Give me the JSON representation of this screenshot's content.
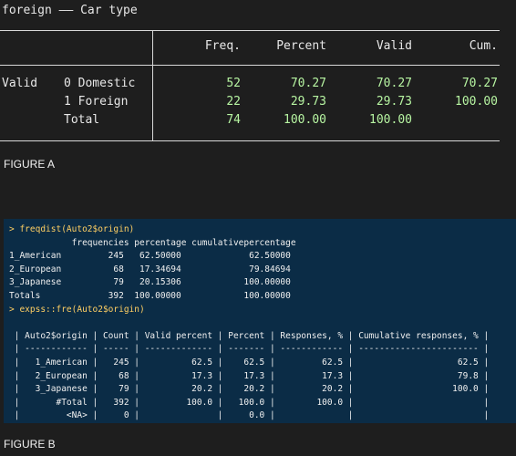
{
  "figureA": {
    "title": "foreign —— Car type",
    "headers": [
      "Freq.",
      "Percent",
      "Valid",
      "Cum."
    ],
    "row_group_label": "Valid",
    "rows": [
      {
        "label": "0 Domestic",
        "freq": "52",
        "percent": "70.27",
        "valid": "70.27",
        "cum": "70.27"
      },
      {
        "label": "1 Foreign",
        "freq": "22",
        "percent": "29.73",
        "valid": "29.73",
        "cum": "100.00"
      },
      {
        "label": "Total",
        "freq": "74",
        "percent": "100.00",
        "valid": "100.00",
        "cum": ""
      }
    ],
    "caption": "FIGURE A",
    "colors": {
      "background": "#1e1e1e",
      "text": "#e8e8e8",
      "numbers": "#b7f5a2",
      "rules": "#d9d9d9"
    }
  },
  "figureB": {
    "caption": "FIGURE B",
    "colors": {
      "background": "#0b2c46",
      "command": "#ffcf63",
      "output": "#f0f0f0"
    },
    "lines": [
      {
        "kind": "cmd",
        "text": "> freqdist(Auto2$origin)"
      },
      {
        "kind": "out",
        "text": "            frequencies percentage cumulativepercentage"
      },
      {
        "kind": "out",
        "text": "1_American         245   62.50000             62.50000"
      },
      {
        "kind": "out",
        "text": "2_European          68   17.34694             79.84694"
      },
      {
        "kind": "out",
        "text": "3_Japanese          79   20.15306            100.00000"
      },
      {
        "kind": "out",
        "text": "Totals             392  100.00000            100.00000"
      },
      {
        "kind": "cmd",
        "text": "> expss::fre(Auto2$origin)"
      },
      {
        "kind": "out",
        "text": ""
      },
      {
        "kind": "out",
        "text": " | Auto2$origin | Count | Valid percent | Percent | Responses, % | Cumulative responses, % |"
      },
      {
        "kind": "out",
        "text": " | ------------ | ----- | ------------- | ------- | ------------ | ----------------------- |"
      },
      {
        "kind": "out",
        "text": " |   1_American |   245 |          62.5 |    62.5 |         62.5 |                    62.5 |"
      },
      {
        "kind": "out",
        "text": " |   2_European |    68 |          17.3 |    17.3 |         17.3 |                    79.8 |"
      },
      {
        "kind": "out",
        "text": " |   3_Japanese |    79 |          20.2 |    20.2 |         20.2 |                   100.0 |"
      },
      {
        "kind": "out",
        "text": " |       #Total |   392 |         100.0 |   100.0 |        100.0 |                         |"
      },
      {
        "kind": "out",
        "text": " |         <NA> |     0 |               |     0.0 |              |                         |"
      }
    ]
  }
}
